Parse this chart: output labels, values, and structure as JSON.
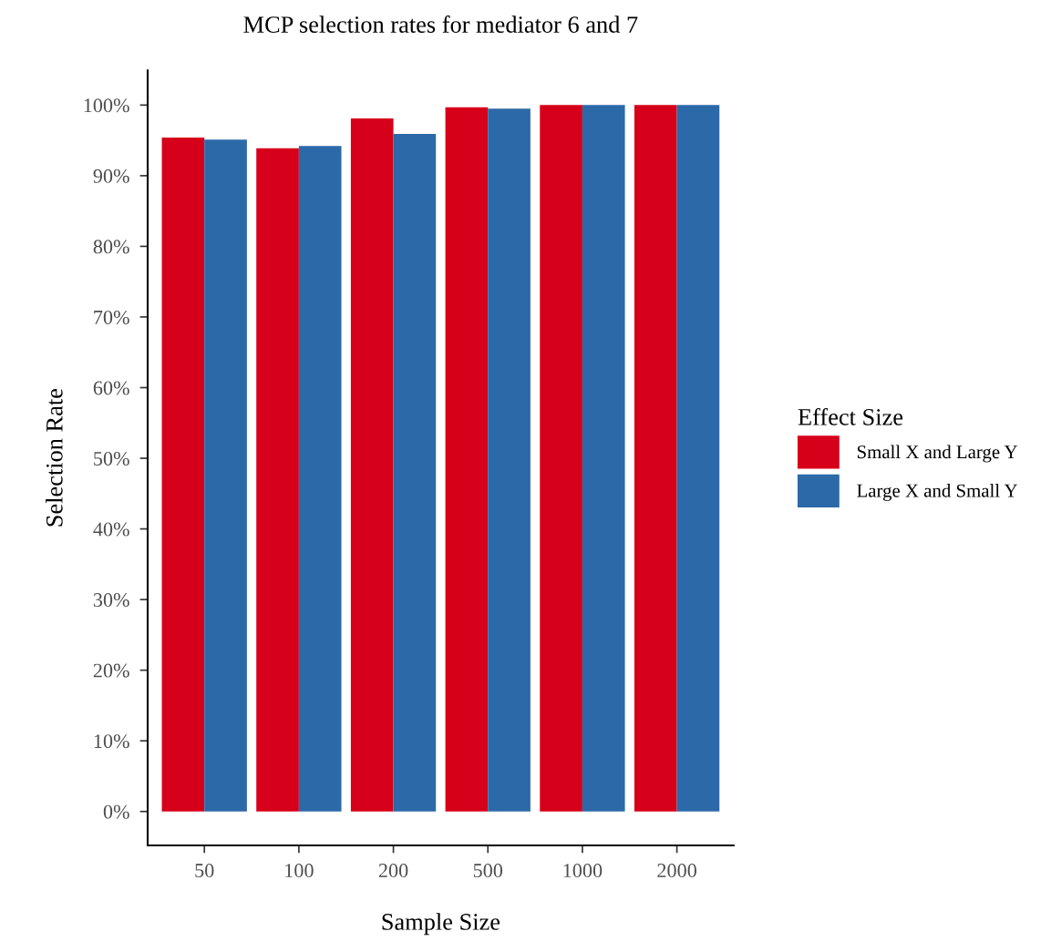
{
  "chart_data": {
    "type": "bar",
    "title": "MCP selection rates for mediator 6 and 7",
    "xlabel": "Sample Size",
    "ylabel": "Selection Rate",
    "legend_title": "Effect Size",
    "categories": [
      "50",
      "100",
      "200",
      "500",
      "1000",
      "2000"
    ],
    "series": [
      {
        "name": "Small X and Large Y",
        "color": "#d7001a",
        "values": [
          95.4,
          93.9,
          98.1,
          99.7,
          100,
          100
        ]
      },
      {
        "name": "Large X and Small Y",
        "color": "#2c69a8",
        "values": [
          95.1,
          94.2,
          95.9,
          99.5,
          100,
          100
        ]
      }
    ],
    "ylim": [
      -4.8,
      104.9
    ],
    "yticks": [
      {
        "value": 0,
        "label": "0%"
      },
      {
        "value": 10,
        "label": "10%"
      },
      {
        "value": 20,
        "label": "20%"
      },
      {
        "value": 30,
        "label": "30%"
      },
      {
        "value": 40,
        "label": "40%"
      },
      {
        "value": 50,
        "label": "50%"
      },
      {
        "value": 60,
        "label": "60%"
      },
      {
        "value": 70,
        "label": "70%"
      },
      {
        "value": 80,
        "label": "80%"
      },
      {
        "value": 90,
        "label": "90%"
      },
      {
        "value": 100,
        "label": "100%"
      }
    ],
    "grid": false,
    "legend": "right"
  }
}
